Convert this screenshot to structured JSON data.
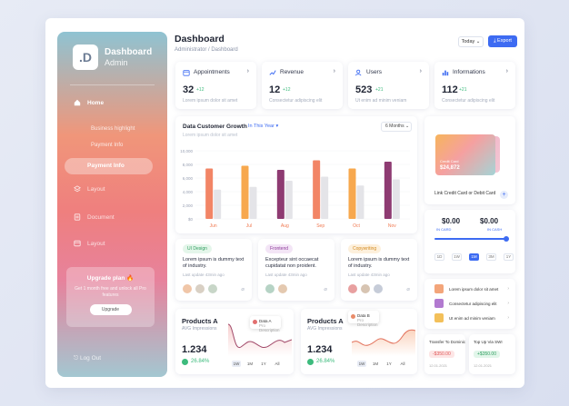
{
  "sidebar": {
    "logo": ".D",
    "brand_title": "Dashboard",
    "brand_sub": "Admin",
    "home": "Home",
    "sub_items": [
      "Business highlight",
      "Payment Info"
    ],
    "active_item": "Payment Info",
    "nav_items": [
      "Layout",
      "Document",
      "Layout"
    ],
    "upgrade_title": "Upgrade plan 🔥",
    "upgrade_desc": "Get 1 month free and unlock all Pro features",
    "upgrade_button": "Upgrade",
    "logout": "Log Out"
  },
  "header": {
    "title": "Dashboard",
    "breadcrumb": "Administrator  /  Dashboard",
    "today": "Today ⌄",
    "export": "Export"
  },
  "stats": [
    {
      "name": "Appointments",
      "value": "32",
      "change": "+12",
      "desc": "Lorem ipsum dolor sit amet",
      "color": "#3d6bf2"
    },
    {
      "name": "Revenue",
      "value": "12",
      "change": "+12",
      "desc": "Consectetur adipiscing elit",
      "color": "#3d6bf2"
    },
    {
      "name": "Users",
      "value": "523",
      "change": "+21",
      "desc": "Ut enim ad minim veniam",
      "color": "#3d6bf2"
    },
    {
      "name": "Informations",
      "value": "112",
      "change": "+21",
      "desc": "Consectetur adipiscing elit",
      "color": "#3d6bf2"
    }
  ],
  "growth": {
    "title": "Data Customer Growth",
    "period": "In This Year  ▾",
    "subtitle": "Lorem ipsum dolor sit amet",
    "select": "6 Months  ⌄"
  },
  "chart_data": {
    "type": "bar",
    "categories": [
      "Jun",
      "Jul",
      "Aug",
      "Sep",
      "Oct",
      "Nov"
    ],
    "series": [
      {
        "values": [
          7400,
          7800,
          7200,
          8600,
          7400,
          8400
        ],
        "colors": [
          "#f28566",
          "#f7a84e",
          "#8e3b72",
          "#f28566",
          "#f7a84e",
          "#8e3b72"
        ]
      },
      {
        "values": [
          4300,
          4700,
          5600,
          6200,
          4900,
          5800
        ],
        "color": "#e4e4e8"
      }
    ],
    "yticks": [
      "$0",
      "2,000",
      "4,000",
      "6,000",
      "8,000",
      "10,000"
    ],
    "ylim": [
      0,
      10000
    ]
  },
  "tasks": [
    {
      "tag": "UI Design",
      "tag_bg": "#e4f6ea",
      "tag_color": "#2f9e5f",
      "text": "Lorem ipsum is dummy text of industry.",
      "meta": "Last update 43min ago"
    },
    {
      "tag": "Frontend",
      "tag_bg": "#f3e5f6",
      "tag_color": "#8e3b9a",
      "text": "Excepteur sint occaecat cupidatat non proident.",
      "meta": "Last update 43min ago"
    },
    {
      "tag": "Copywriting",
      "tag_bg": "#fdf0dc",
      "tag_color": "#d48a1f",
      "text": "Lorem ipsum is dummy text of industry.",
      "meta": "Last update 43min ago"
    }
  ],
  "products": [
    {
      "name": "Products A",
      "sub": "AVG Impressions",
      "value": "1.234",
      "pct": "26.84%",
      "popup_title": "Data A",
      "popup_sub": "Pro Description",
      "tabs": [
        "1W",
        "1M",
        "1Y",
        "All"
      ]
    },
    {
      "name": "Products A",
      "sub": "AVG Impressions",
      "value": "1.234",
      "pct": "26.84%",
      "popup_title": "Data B",
      "popup_sub": "Pro Description",
      "tabs": [
        "1W",
        "1M",
        "1Y",
        "All"
      ]
    }
  ],
  "wallet": {
    "card_label": "Credit Card",
    "card_amount": "$24,872",
    "link_card": "Link Credit Card or Debit Card",
    "amount1": "$0.00",
    "amount1_label": "IN CARD",
    "amount2": "$0.00",
    "amount2_label": "IN CASH",
    "slider": 1.0,
    "tabs": [
      "1D",
      "1W",
      "1M",
      "3M",
      "1Y"
    ],
    "active_tab": "1M"
  },
  "transactions": [
    {
      "text": "Lorem ipsum dolor sit amet",
      "color": "#f3a57a"
    },
    {
      "text": "Consectetur adipiscing elit",
      "color": "#b27ad0"
    },
    {
      "text": "Ut enim ad minim veniam",
      "color": "#f3c05a"
    }
  ],
  "transfers": [
    {
      "title": "Transfer To Dominic",
      "amount": "-$350.00",
      "amount_bg": "#fde6e6",
      "amount_color": "#e05757",
      "date": "12.01.2021"
    },
    {
      "title": "Top Up Via SWI",
      "amount": "+$350.00",
      "amount_bg": "#e2f6ea",
      "amount_color": "#2f9e5f",
      "date": "12.01.2021"
    }
  ]
}
